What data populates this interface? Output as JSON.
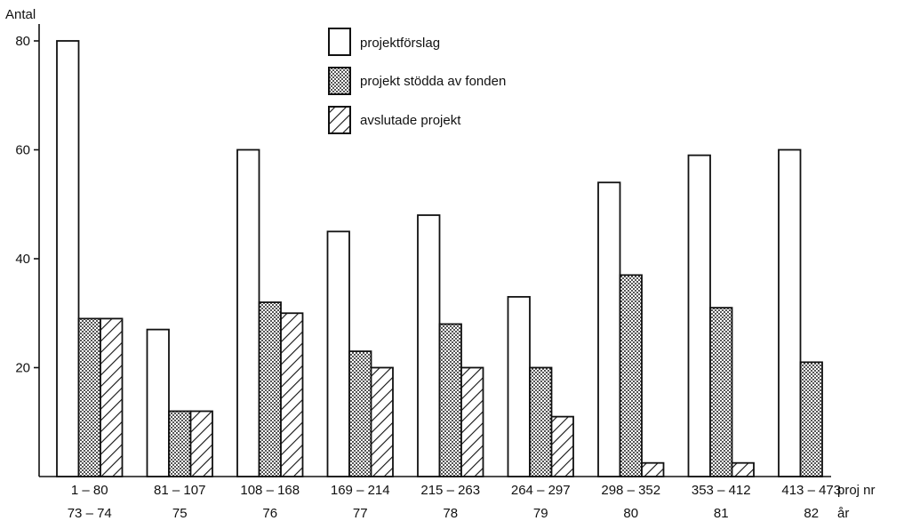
{
  "chart_data": {
    "type": "bar",
    "ylabel": "Antal",
    "ylim": [
      0,
      85
    ],
    "yticks": [
      20,
      40,
      60,
      80
    ],
    "categories": [
      "1 – 80",
      "81 – 107",
      "108 – 168",
      "169 – 214",
      "215 – 263",
      "264 – 297",
      "298 – 352",
      "353 – 412",
      "413 – 473"
    ],
    "categories_year": [
      "73 – 74",
      "75",
      "76",
      "77",
      "78",
      "79",
      "80",
      "81",
      "82"
    ],
    "x_row_labels": [
      "proj nr",
      "år"
    ],
    "legend_position": "top-center",
    "series": [
      {
        "name": "projektförslag",
        "pattern": "empty",
        "values": [
          80,
          27,
          60,
          45,
          48,
          33,
          54,
          59,
          60
        ]
      },
      {
        "name": "projekt stödda av fonden",
        "pattern": "dotted",
        "values": [
          29,
          12,
          32,
          23,
          28,
          20,
          37,
          31,
          21
        ]
      },
      {
        "name": "avslutade projekt",
        "pattern": "hatched",
        "values": [
          29,
          12,
          30,
          20,
          20,
          11,
          2.5,
          2.5,
          null
        ]
      }
    ]
  }
}
